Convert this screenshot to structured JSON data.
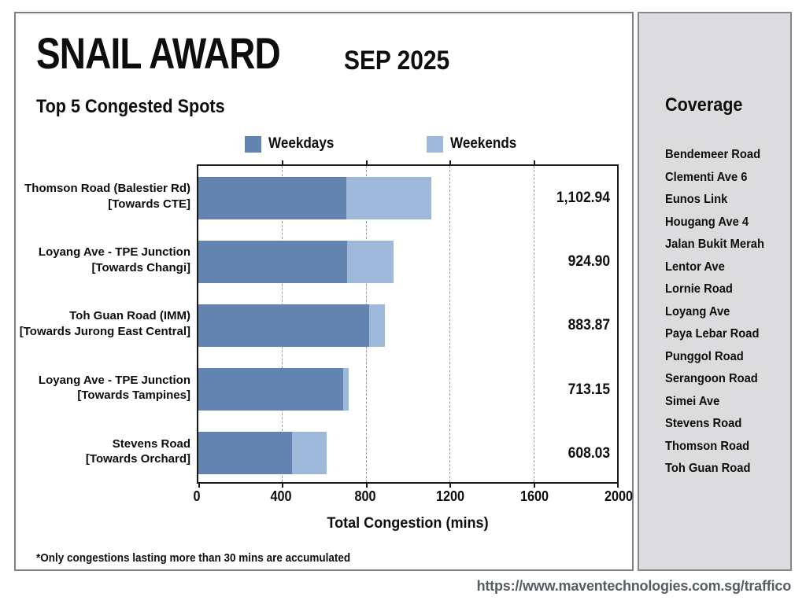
{
  "header": {
    "title": "SNAIL AWARD",
    "period": "SEP 2025",
    "subtitle": "Top 5 Congested Spots"
  },
  "legend": [
    {
      "label": "Weekdays",
      "color": "#6384b0"
    },
    {
      "label": "Weekends",
      "color": "#9db8d8"
    }
  ],
  "chart_data": {
    "type": "bar",
    "orientation": "horizontal",
    "stacked": true,
    "title": "Top 5 Congested Spots",
    "categories": [
      [
        "Thomson Road (Balestier Rd)",
        "[Towards CTE]"
      ],
      [
        "Loyang Ave - TPE Junction",
        "[Towards Changi]"
      ],
      [
        "Toh Guan Road (IMM)",
        "[Towards Jurong East Central]"
      ],
      [
        "Loyang Ave - TPE Junction",
        "[Towards Tampines]"
      ],
      [
        "Stevens Road",
        "[Towards Orchard]"
      ]
    ],
    "series": [
      {
        "name": "Weekdays",
        "color": "#6384b0",
        "values": [
          702,
          707,
          809,
          686,
          444
        ]
      },
      {
        "name": "Weekends",
        "color": "#9db8d8",
        "values": [
          400.94,
          217.9,
          74.87,
          27.15,
          164.03
        ]
      }
    ],
    "totals": [
      1102.94,
      924.9,
      883.87,
      713.15,
      608.03
    ],
    "total_labels": [
      "1,102.94",
      "924.90",
      "883.87",
      "713.15",
      "608.03"
    ],
    "xlabel": "Total Congestion (mins)",
    "xlim": [
      0,
      2000
    ],
    "xticks": [
      0,
      400,
      800,
      1200,
      1600,
      2000
    ],
    "grid": "dashed-vertical",
    "legend_position": "top"
  },
  "sidebar": {
    "title": "Coverage",
    "items": [
      "Bendemeer Road",
      "Clementi Ave 6",
      "Eunos Link",
      "Hougang Ave 4",
      "Jalan Bukit Merah",
      "Lentor Ave",
      "Lornie Road",
      "Loyang Ave",
      "Paya Lebar Road",
      "Punggol Road",
      "Serangoon Road",
      "Simei Ave",
      "Stevens Road",
      "Thomson Road",
      "Toh Guan Road"
    ]
  },
  "footer": {
    "footnote": "*Only congestions lasting more than 30 mins are accumulated",
    "url": "https://www.maventechnologies.com.sg/traffico"
  },
  "colors": {
    "weekday": "#6384b0",
    "weekend": "#9db8d8",
    "sidebar_bg": "#dcdcde",
    "card_border": "#7e8187",
    "url_text": "#565c66",
    "grid": "#9a9a9a"
  }
}
